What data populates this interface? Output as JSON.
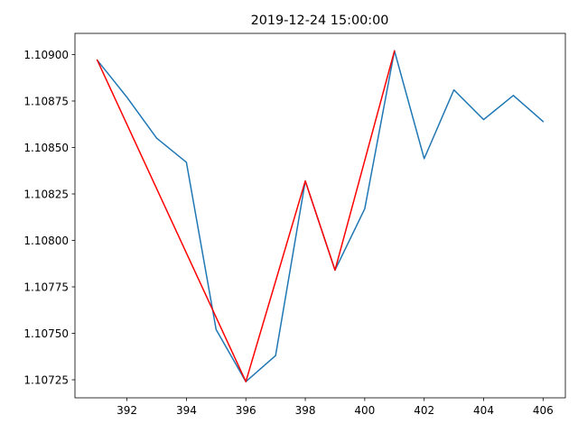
{
  "chart_data": {
    "type": "line",
    "title": "2019-12-24 15:00:00",
    "xlabel": "",
    "ylabel": "",
    "xlim": [
      390.25,
      406.75
    ],
    "ylim": [
      1.107153,
      1.109114
    ],
    "grid": false,
    "x_ticks": [
      392,
      394,
      396,
      398,
      400,
      402,
      404,
      406
    ],
    "y_ticks": [
      1.10725,
      1.1075,
      1.10775,
      1.108,
      1.10825,
      1.1085,
      1.10875,
      1.109
    ],
    "y_tick_decimals": 5,
    "series": [
      {
        "color": "#1f77b4",
        "x": [
          391,
          392,
          393,
          394,
          395,
          396,
          397,
          398,
          399,
          400,
          401,
          402,
          403,
          404,
          405,
          406
        ],
        "y": [
          1.10897,
          1.10877,
          1.10855,
          1.10842,
          1.10752,
          1.10724,
          1.10738,
          1.10832,
          1.10784,
          1.10817,
          1.10902,
          1.10844,
          1.10881,
          1.10865,
          1.10878,
          1.10864
        ]
      },
      {
        "color": "#ff0000",
        "x": [
          391,
          396,
          398,
          399,
          401
        ],
        "y": [
          1.10897,
          1.10724,
          1.10832,
          1.10784,
          1.10902
        ]
      }
    ]
  }
}
